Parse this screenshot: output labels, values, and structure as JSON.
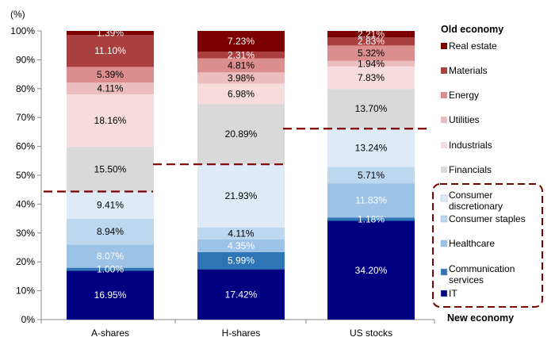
{
  "chart_data": {
    "type": "bar",
    "stacked": true,
    "y_unit_label": "(%)",
    "ylim": [
      0,
      100
    ],
    "yticks": [
      0,
      10,
      20,
      30,
      40,
      50,
      60,
      70,
      80,
      90,
      100
    ],
    "categories": [
      "A-shares",
      "H-shares",
      "US stocks"
    ],
    "series": [
      {
        "name": "IT",
        "color": "#000080",
        "label_color": "#ffffff",
        "values": [
          16.95,
          17.42,
          34.2
        ],
        "labels": [
          "16.95%",
          "17.42%",
          "34.20%"
        ]
      },
      {
        "name": "Communication services",
        "color": "#2e75b6",
        "label_color": "#ffffff",
        "values": [
          1.0,
          5.99,
          1.18
        ],
        "labels": [
          "1.00%",
          "5.99%",
          "1.18%"
        ]
      },
      {
        "name": "Healthcare",
        "color": "#9cc2e5",
        "label_color": "#ffffff",
        "values": [
          8.07,
          4.35,
          11.83
        ],
        "labels": [
          "8.07%",
          "4.35%",
          "11.83%"
        ]
      },
      {
        "name": "Consumer staples",
        "color": "#bdd7ee",
        "label_color": "#000000",
        "values": [
          8.94,
          4.11,
          5.71
        ],
        "labels": [
          "8.94%",
          "4.11%",
          "5.71%"
        ]
      },
      {
        "name": "Consumer discretionary",
        "color": "#dfeaf7",
        "label_color": "#000000",
        "values": [
          9.41,
          21.93,
          13.24
        ],
        "labels": [
          "9.41%",
          "21.93%",
          "13.24%"
        ]
      },
      {
        "name": "Financials",
        "color": "#d9d9d9",
        "label_color": "#000000",
        "values": [
          15.5,
          20.89,
          13.7
        ],
        "labels": [
          "15.50%",
          "20.89%",
          "13.70%"
        ]
      },
      {
        "name": "Industrials",
        "color": "#f6dcdc",
        "label_color": "#000000",
        "values": [
          18.16,
          6.98,
          7.83
        ],
        "labels": [
          "18.16%",
          "6.98%",
          "7.83%"
        ]
      },
      {
        "name": "Utilities",
        "color": "#ecbdbd",
        "label_color": "#000000",
        "values": [
          4.11,
          3.98,
          1.94
        ],
        "labels": [
          "4.11%",
          "3.98%",
          "1.94%"
        ]
      },
      {
        "name": "Energy",
        "color": "#dc8d8d",
        "label_color": "#000000",
        "values": [
          5.39,
          4.81,
          5.32
        ],
        "labels": [
          "5.39%",
          "4.81%",
          "5.32%"
        ]
      },
      {
        "name": "Materials",
        "color": "#a9403f",
        "label_color": "#ffffff",
        "values": [
          11.1,
          2.31,
          2.83
        ],
        "labels": [
          "11.10%",
          "2.31%",
          "2.83%"
        ]
      },
      {
        "name": "Real estate",
        "color": "#7b0000",
        "label_color": "#ffffff",
        "values": [
          1.39,
          7.23,
          2.21
        ],
        "labels": [
          "1.39%",
          "7.23%",
          "2.21%"
        ]
      }
    ],
    "dashed_threshold_lines": [
      {
        "category": "A-shares",
        "value": 44.37
      },
      {
        "category": "H-shares",
        "value": 53.8
      },
      {
        "category": "US stocks",
        "value": 66.14
      }
    ],
    "legend": {
      "old_economy_title": "Old economy",
      "old_economy_items": [
        {
          "label": "Real estate",
          "color": "#7b0000"
        },
        {
          "label": "Materials",
          "color": "#a9403f"
        },
        {
          "label": "Energy",
          "color": "#dc8d8d"
        },
        {
          "label": "Utilities",
          "color": "#ecbdbd"
        },
        {
          "label": "Industrials",
          "color": "#f6dcdc"
        },
        {
          "label": "Financials",
          "color": "#d9d9d9"
        }
      ],
      "new_economy_title": "New economy",
      "new_economy_items": [
        {
          "label": "Consumer discretionary",
          "color": "#dfeaf7"
        },
        {
          "label": "Consumer staples",
          "color": "#bdd7ee"
        },
        {
          "label": "Healthcare",
          "color": "#9cc2e5"
        },
        {
          "label": "Communication services",
          "color": "#2e75b6"
        },
        {
          "label": "IT",
          "color": "#000080"
        }
      ]
    },
    "threshold_line_color": "#7b0000",
    "grid": false
  }
}
